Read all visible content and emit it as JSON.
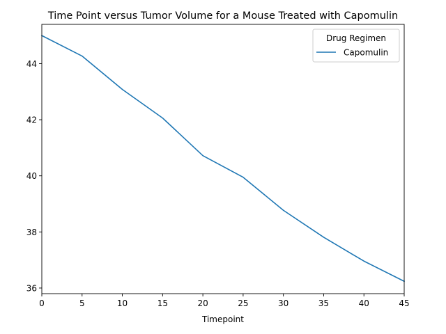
{
  "chart_data": {
    "type": "line",
    "title": "Time Point versus Tumor Volume for a Mouse Treated with Capomulin",
    "xlabel": "Timepoint",
    "ylabel": "",
    "x": [
      0,
      5,
      10,
      15,
      20,
      25,
      30,
      35,
      40,
      45
    ],
    "series": [
      {
        "name": "Capomulin",
        "color": "#1f77b4",
        "values": [
          45.0,
          44.27,
          43.08,
          42.06,
          40.72,
          39.95,
          38.77,
          37.81,
          36.96,
          36.24
        ]
      }
    ],
    "xlim": [
      0,
      45
    ],
    "ylim": [
      35.8,
      45.4
    ],
    "xticks": [
      0,
      5,
      10,
      15,
      20,
      25,
      30,
      35,
      40,
      45
    ],
    "yticks": [
      36,
      38,
      40,
      42,
      44
    ],
    "grid": false,
    "legend": {
      "title": "Drug Regimen",
      "placement": "top-right",
      "entries": [
        "Capomulin"
      ]
    }
  }
}
